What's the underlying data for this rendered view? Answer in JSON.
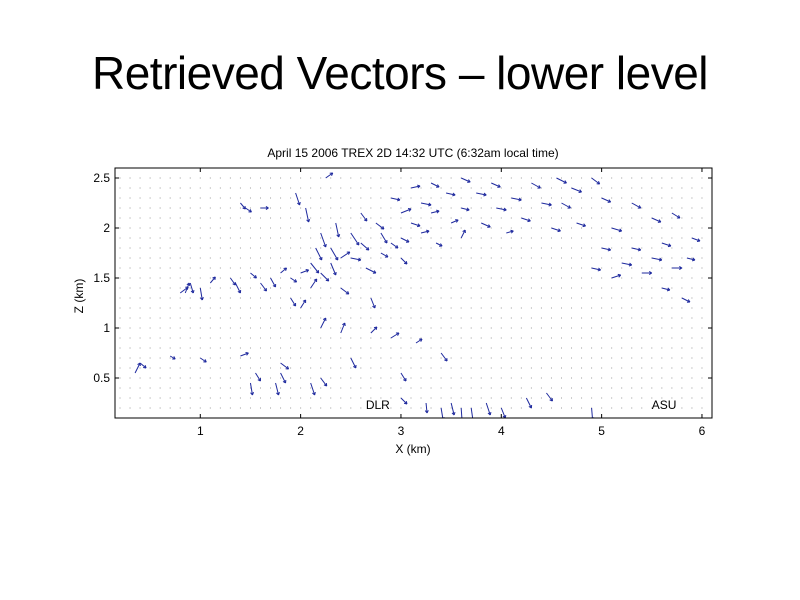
{
  "slide": {
    "title": "Retrieved Vectors – lower level"
  },
  "chart_data": {
    "type": "quiver",
    "title": "April 15 2006 TREX 2D 14:32 UTC  (6:32am local time)",
    "xlabel": "X (km)",
    "ylabel": "Z (km)",
    "xlim": [
      0.15,
      6.1
    ],
    "ylim": [
      0.1,
      2.6
    ],
    "xticks": [
      1,
      2,
      3,
      4,
      5,
      6
    ],
    "yticks": [
      0.5,
      1,
      1.5,
      2,
      2.5
    ],
    "xtick_labels": [
      "1",
      "2",
      "3",
      "4",
      "5",
      "6"
    ],
    "ytick_labels": [
      "0.5",
      "1",
      "1.5",
      "2",
      "2.5"
    ],
    "grid_spacing_km": 0.1,
    "grid": "dot-per-grid-node",
    "annotations": [
      {
        "text": "DLR",
        "x": 2.65,
        "y": 0.19
      },
      {
        "text": "ASU",
        "x": 5.5,
        "y": 0.19
      }
    ],
    "arrow_color": "#1f2a9e",
    "grid_dot_color": "#9a9a9a",
    "vectors": [
      {
        "x": 0.35,
        "z": 0.55,
        "u": 0.05,
        "w": 0.1
      },
      {
        "x": 0.4,
        "z": 0.65,
        "u": 0.06,
        "w": -0.05
      },
      {
        "x": 0.7,
        "z": 0.72,
        "u": 0.05,
        "w": -0.03
      },
      {
        "x": 0.8,
        "z": 1.35,
        "u": 0.08,
        "w": 0.06
      },
      {
        "x": 0.85,
        "z": 1.35,
        "u": 0.04,
        "w": 0.1
      },
      {
        "x": 0.9,
        "z": 1.45,
        "u": 0.03,
        "w": -0.1
      },
      {
        "x": 1.0,
        "z": 1.4,
        "u": 0.02,
        "w": -0.12
      },
      {
        "x": 1.0,
        "z": 0.7,
        "u": 0.06,
        "w": -0.04
      },
      {
        "x": 1.1,
        "z": 1.45,
        "u": 0.05,
        "w": 0.06
      },
      {
        "x": 1.3,
        "z": 1.5,
        "u": 0.05,
        "w": -0.07
      },
      {
        "x": 1.35,
        "z": 1.45,
        "u": 0.05,
        "w": -0.1
      },
      {
        "x": 1.4,
        "z": 2.25,
        "u": 0.05,
        "w": -0.06
      },
      {
        "x": 1.4,
        "z": 0.72,
        "u": 0.08,
        "w": 0.03
      },
      {
        "x": 1.45,
        "z": 2.2,
        "u": 0.06,
        "w": -0.04
      },
      {
        "x": 1.5,
        "z": 1.55,
        "u": 0.06,
        "w": -0.05
      },
      {
        "x": 1.5,
        "z": 0.45,
        "u": 0.02,
        "w": -0.12
      },
      {
        "x": 1.55,
        "z": 0.55,
        "u": 0.05,
        "w": -0.08
      },
      {
        "x": 1.6,
        "z": 2.2,
        "u": 0.08,
        "w": 0.0
      },
      {
        "x": 1.6,
        "z": 1.45,
        "u": 0.06,
        "w": -0.08
      },
      {
        "x": 1.7,
        "z": 1.5,
        "u": 0.05,
        "w": -0.09
      },
      {
        "x": 1.75,
        "z": 0.45,
        "u": 0.03,
        "w": -0.12
      },
      {
        "x": 1.8,
        "z": 1.55,
        "u": 0.06,
        "w": 0.05
      },
      {
        "x": 1.8,
        "z": 0.55,
        "u": 0.05,
        "w": -0.1
      },
      {
        "x": 1.8,
        "z": 0.65,
        "u": 0.08,
        "w": -0.06
      },
      {
        "x": 1.9,
        "z": 1.5,
        "u": 0.06,
        "w": -0.04
      },
      {
        "x": 1.9,
        "z": 1.3,
        "u": 0.05,
        "w": -0.08
      },
      {
        "x": 1.95,
        "z": 2.35,
        "u": 0.04,
        "w": -0.12
      },
      {
        "x": 2.0,
        "z": 1.55,
        "u": 0.08,
        "w": 0.03
      },
      {
        "x": 2.0,
        "z": 1.2,
        "u": 0.05,
        "w": 0.08
      },
      {
        "x": 2.05,
        "z": 2.2,
        "u": 0.03,
        "w": -0.14
      },
      {
        "x": 2.1,
        "z": 1.65,
        "u": 0.08,
        "w": -0.1
      },
      {
        "x": 2.1,
        "z": 1.4,
        "u": 0.06,
        "w": 0.09
      },
      {
        "x": 2.1,
        "z": 0.45,
        "u": 0.04,
        "w": -0.12
      },
      {
        "x": 2.15,
        "z": 1.8,
        "u": 0.06,
        "w": -0.12
      },
      {
        "x": 2.2,
        "z": 1.95,
        "u": 0.05,
        "w": -0.14
      },
      {
        "x": 2.2,
        "z": 1.55,
        "u": 0.08,
        "w": -0.08
      },
      {
        "x": 2.2,
        "z": 1.0,
        "u": 0.05,
        "w": 0.1
      },
      {
        "x": 2.2,
        "z": 0.5,
        "u": 0.06,
        "w": -0.08
      },
      {
        "x": 2.25,
        "z": 2.5,
        "u": 0.07,
        "w": 0.05
      },
      {
        "x": 2.3,
        "z": 1.8,
        "u": 0.07,
        "w": -0.12
      },
      {
        "x": 2.3,
        "z": 1.65,
        "u": 0.05,
        "w": -0.12
      },
      {
        "x": 2.35,
        "z": 2.05,
        "u": 0.03,
        "w": -0.14
      },
      {
        "x": 2.4,
        "z": 1.7,
        "u": 0.09,
        "w": 0.06
      },
      {
        "x": 2.4,
        "z": 1.4,
        "u": 0.08,
        "w": -0.06
      },
      {
        "x": 2.4,
        "z": 0.95,
        "u": 0.04,
        "w": 0.1
      },
      {
        "x": 2.5,
        "z": 1.95,
        "u": 0.08,
        "w": -0.12
      },
      {
        "x": 2.5,
        "z": 1.7,
        "u": 0.1,
        "w": -0.02
      },
      {
        "x": 2.5,
        "z": 0.7,
        "u": 0.05,
        "w": -0.1
      },
      {
        "x": 2.6,
        "z": 2.15,
        "u": 0.06,
        "w": -0.08
      },
      {
        "x": 2.6,
        "z": 1.85,
        "u": 0.08,
        "w": -0.07
      },
      {
        "x": 2.65,
        "z": 1.6,
        "u": 0.1,
        "w": -0.05
      },
      {
        "x": 2.7,
        "z": 1.3,
        "u": 0.04,
        "w": -0.1
      },
      {
        "x": 2.7,
        "z": 0.95,
        "u": 0.06,
        "w": 0.06
      },
      {
        "x": 2.75,
        "z": 2.05,
        "u": 0.08,
        "w": -0.06
      },
      {
        "x": 2.8,
        "z": 1.75,
        "u": 0.07,
        "w": -0.04
      },
      {
        "x": 2.8,
        "z": 1.95,
        "u": 0.06,
        "w": -0.1
      },
      {
        "x": 2.9,
        "z": 2.3,
        "u": 0.09,
        "w": -0.02
      },
      {
        "x": 2.9,
        "z": 1.85,
        "u": 0.07,
        "w": -0.05
      },
      {
        "x": 2.9,
        "z": 0.9,
        "u": 0.08,
        "w": 0.05
      },
      {
        "x": 3.0,
        "z": 2.15,
        "u": 0.1,
        "w": 0.04
      },
      {
        "x": 3.0,
        "z": 1.9,
        "u": 0.08,
        "w": -0.04
      },
      {
        "x": 3.0,
        "z": 1.7,
        "u": 0.06,
        "w": -0.06
      },
      {
        "x": 3.0,
        "z": 0.55,
        "u": 0.05,
        "w": -0.08
      },
      {
        "x": 3.0,
        "z": 0.3,
        "u": 0.06,
        "w": -0.06
      },
      {
        "x": 3.1,
        "z": 2.4,
        "u": 0.09,
        "w": 0.02
      },
      {
        "x": 3.1,
        "z": 2.05,
        "u": 0.09,
        "w": -0.03
      },
      {
        "x": 3.15,
        "z": 0.85,
        "u": 0.06,
        "w": 0.04
      },
      {
        "x": 3.2,
        "z": 2.25,
        "u": 0.1,
        "w": -0.02
      },
      {
        "x": 3.2,
        "z": 1.95,
        "u": 0.08,
        "w": 0.02
      },
      {
        "x": 3.25,
        "z": 0.25,
        "u": 0.01,
        "w": -0.1
      },
      {
        "x": 3.3,
        "z": 2.45,
        "u": 0.08,
        "w": -0.04
      },
      {
        "x": 3.3,
        "z": 2.15,
        "u": 0.08,
        "w": 0.02
      },
      {
        "x": 3.35,
        "z": 1.85,
        "u": 0.06,
        "w": -0.03
      },
      {
        "x": 3.4,
        "z": 0.2,
        "u": 0.02,
        "w": -0.12
      },
      {
        "x": 3.4,
        "z": 0.75,
        "u": 0.06,
        "w": -0.08
      },
      {
        "x": 3.45,
        "z": 2.35,
        "u": 0.09,
        "w": -0.02
      },
      {
        "x": 3.5,
        "z": 2.05,
        "u": 0.07,
        "w": 0.03
      },
      {
        "x": 3.5,
        "z": 0.25,
        "u": 0.03,
        "w": -0.12
      },
      {
        "x": 3.6,
        "z": 2.5,
        "u": 0.09,
        "w": -0.04
      },
      {
        "x": 3.6,
        "z": 2.2,
        "u": 0.08,
        "w": -0.02
      },
      {
        "x": 3.6,
        "z": 1.9,
        "u": 0.04,
        "w": 0.08
      },
      {
        "x": 3.6,
        "z": 0.2,
        "u": 0.01,
        "w": -0.14
      },
      {
        "x": 3.7,
        "z": 0.2,
        "u": 0.02,
        "w": -0.14
      },
      {
        "x": 3.75,
        "z": 2.35,
        "u": 0.1,
        "w": -0.02
      },
      {
        "x": 3.8,
        "z": 2.05,
        "u": 0.09,
        "w": -0.04
      },
      {
        "x": 3.85,
        "z": 0.25,
        "u": 0.04,
        "w": -0.12
      },
      {
        "x": 3.9,
        "z": 2.45,
        "u": 0.09,
        "w": -0.04
      },
      {
        "x": 3.95,
        "z": 2.2,
        "u": 0.1,
        "w": -0.02
      },
      {
        "x": 4.0,
        "z": 0.2,
        "u": 0.04,
        "w": -0.1
      },
      {
        "x": 4.05,
        "z": 1.95,
        "u": 0.07,
        "w": 0.02
      },
      {
        "x": 4.1,
        "z": 2.3,
        "u": 0.1,
        "w": -0.02
      },
      {
        "x": 4.2,
        "z": 2.1,
        "u": 0.09,
        "w": -0.03
      },
      {
        "x": 4.25,
        "z": 0.3,
        "u": 0.05,
        "w": -0.1
      },
      {
        "x": 4.3,
        "z": 2.45,
        "u": 0.09,
        "w": -0.05
      },
      {
        "x": 4.4,
        "z": 2.25,
        "u": 0.1,
        "w": -0.02
      },
      {
        "x": 4.45,
        "z": 0.35,
        "u": 0.06,
        "w": -0.08
      },
      {
        "x": 4.5,
        "z": 2.0,
        "u": 0.09,
        "w": -0.03
      },
      {
        "x": 4.55,
        "z": 2.5,
        "u": 0.1,
        "w": -0.05
      },
      {
        "x": 4.6,
        "z": 2.25,
        "u": 0.09,
        "w": -0.05
      },
      {
        "x": 4.7,
        "z": 2.4,
        "u": 0.1,
        "w": -0.04
      },
      {
        "x": 4.75,
        "z": 2.05,
        "u": 0.09,
        "w": -0.03
      },
      {
        "x": 4.9,
        "z": 2.5,
        "u": 0.08,
        "w": -0.06
      },
      {
        "x": 4.9,
        "z": 1.6,
        "u": 0.09,
        "w": -0.02
      },
      {
        "x": 4.9,
        "z": 0.2,
        "u": 0.01,
        "w": -0.12
      },
      {
        "x": 5.0,
        "z": 2.3,
        "u": 0.09,
        "w": -0.04
      },
      {
        "x": 5.0,
        "z": 1.8,
        "u": 0.09,
        "w": -0.02
      },
      {
        "x": 5.1,
        "z": 2.0,
        "u": 0.1,
        "w": -0.03
      },
      {
        "x": 5.1,
        "z": 1.5,
        "u": 0.09,
        "w": 0.03
      },
      {
        "x": 5.2,
        "z": 1.65,
        "u": 0.1,
        "w": -0.02
      },
      {
        "x": 5.3,
        "z": 2.25,
        "u": 0.09,
        "w": -0.05
      },
      {
        "x": 5.3,
        "z": 1.8,
        "u": 0.09,
        "w": -0.02
      },
      {
        "x": 5.4,
        "z": 1.55,
        "u": 0.1,
        "w": 0.0
      },
      {
        "x": 5.5,
        "z": 2.1,
        "u": 0.09,
        "w": -0.04
      },
      {
        "x": 5.5,
        "z": 1.7,
        "u": 0.1,
        "w": -0.02
      },
      {
        "x": 5.6,
        "z": 1.4,
        "u": 0.08,
        "w": -0.02
      },
      {
        "x": 5.6,
        "z": 1.85,
        "u": 0.09,
        "w": -0.03
      },
      {
        "x": 5.7,
        "z": 2.15,
        "u": 0.08,
        "w": -0.05
      },
      {
        "x": 5.7,
        "z": 1.6,
        "u": 0.1,
        "w": 0.0
      },
      {
        "x": 5.8,
        "z": 1.3,
        "u": 0.08,
        "w": -0.04
      },
      {
        "x": 5.85,
        "z": 1.7,
        "u": 0.08,
        "w": -0.02
      },
      {
        "x": 5.9,
        "z": 1.9,
        "u": 0.08,
        "w": -0.03
      }
    ]
  }
}
